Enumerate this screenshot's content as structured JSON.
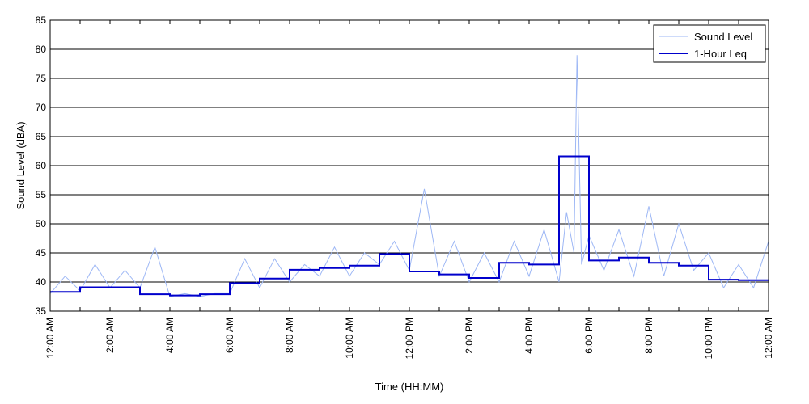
{
  "chart_data": {
    "type": "line",
    "title": "",
    "xlabel": "Time (HH:MM)",
    "ylabel": "Sound Level (dBA)",
    "ylim": [
      35,
      85
    ],
    "xlim": [
      0,
      24
    ],
    "x_unit": "hours since 12:00 AM",
    "yticks": [
      35,
      40,
      45,
      50,
      55,
      60,
      65,
      70,
      75,
      80,
      85
    ],
    "xticks": [
      {
        "x": 0,
        "label": "12:00 AM"
      },
      {
        "x": 2,
        "label": "2:00 AM"
      },
      {
        "x": 4,
        "label": "4:00 AM"
      },
      {
        "x": 6,
        "label": "6:00 AM"
      },
      {
        "x": 8,
        "label": "8:00 AM"
      },
      {
        "x": 10,
        "label": "10:00 AM"
      },
      {
        "x": 12,
        "label": "12:00 PM"
      },
      {
        "x": 14,
        "label": "2:00 PM"
      },
      {
        "x": 16,
        "label": "4:00 PM"
      },
      {
        "x": 18,
        "label": "6:00 PM"
      },
      {
        "x": 20,
        "label": "8:00 PM"
      },
      {
        "x": 22,
        "label": "10:00 PM"
      },
      {
        "x": 24,
        "label": "12:00 AM"
      }
    ],
    "grid": "horizontal",
    "legend_position": "top-right",
    "series": [
      {
        "name": "Sound Level",
        "color": "#9db7f5",
        "style": "thin line",
        "x": [
          0,
          0.5,
          1,
          1.5,
          2,
          2.5,
          3,
          3.5,
          4,
          4.5,
          5,
          5.5,
          6,
          6.5,
          7,
          7.5,
          8,
          8.5,
          9,
          9.5,
          10,
          10.5,
          11,
          11.5,
          12,
          12.5,
          13,
          13.5,
          14,
          14.5,
          15,
          15.5,
          16,
          16.5,
          17,
          17.25,
          17.5,
          17.6,
          17.75,
          18,
          18.5,
          19,
          19.5,
          20,
          20.5,
          21,
          21.5,
          22,
          22.5,
          23,
          23.5,
          24
        ],
        "y": [
          38,
          41,
          38.5,
          43,
          39,
          42,
          39,
          46,
          37.5,
          38,
          37.5,
          38,
          38,
          44,
          39,
          44,
          40,
          43,
          41,
          46,
          41,
          45,
          43,
          47,
          42,
          56,
          41,
          47,
          40,
          45,
          40,
          47,
          41,
          49,
          40,
          52,
          45,
          79,
          43,
          48,
          42,
          49,
          41,
          53,
          41,
          50,
          42,
          45,
          39,
          43,
          39,
          47
        ]
      },
      {
        "name": "1-Hour Leq",
        "color": "#0000cc",
        "style": "step",
        "hour_start": [
          0,
          1,
          2,
          3,
          4,
          5,
          6,
          7,
          8,
          9,
          10,
          11,
          12,
          13,
          14,
          15,
          16,
          17,
          18,
          19,
          20,
          21,
          22,
          23
        ],
        "values": [
          38.3,
          39.1,
          39.1,
          37.9,
          37.7,
          37.9,
          39.8,
          40.6,
          42.1,
          42.4,
          42.8,
          44.8,
          41.8,
          41.3,
          40.7,
          43.3,
          43.0,
          61.6,
          43.7,
          44.2,
          43.3,
          42.8,
          40.4,
          40.3
        ]
      }
    ]
  }
}
